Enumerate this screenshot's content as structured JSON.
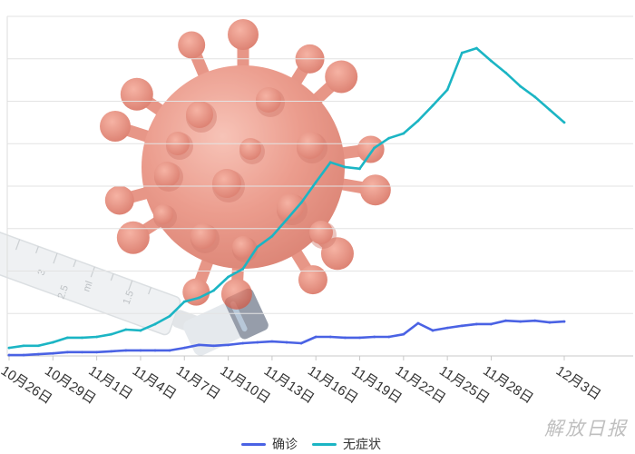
{
  "chart_data": {
    "type": "line",
    "x": [
      "10月26日",
      "10月27日",
      "10月28日",
      "10月29日",
      "10月30日",
      "10月31日",
      "11月1日",
      "11月2日",
      "11月3日",
      "11月4日",
      "11月5日",
      "11月6日",
      "11月7日",
      "11月8日",
      "11月9日",
      "11月10日",
      "11月11日",
      "11月12日",
      "11月13日",
      "11月14日",
      "11月15日",
      "11月16日",
      "11月17日",
      "11月18日",
      "11月19日",
      "11月20日",
      "11月21日",
      "11月22日",
      "11月23日",
      "11月24日",
      "11月25日",
      "11月26日",
      "11月27日",
      "11月28日",
      "11月29日",
      "11月30日",
      "12月1日",
      "12月2日",
      "12月3日"
    ],
    "x_tick_labels": [
      "10月26日",
      "10月29日",
      "11月1日",
      "11月4日",
      "11月7日",
      "11月10日",
      "11月13日",
      "11月16日",
      "11月19日",
      "11月22日",
      "11月25日",
      "11月28日",
      "12月3日"
    ],
    "ylim": [
      0,
      8
    ],
    "grid": true,
    "legend": "bottom",
    "series": [
      {
        "name": "确诊",
        "color": "#4a62e4",
        "values": [
          0.02,
          0.02,
          0.04,
          0.06,
          0.09,
          0.09,
          0.09,
          0.11,
          0.13,
          0.13,
          0.13,
          0.13,
          0.19,
          0.26,
          0.24,
          0.26,
          0.3,
          0.32,
          0.34,
          0.32,
          0.3,
          0.45,
          0.45,
          0.43,
          0.43,
          0.45,
          0.45,
          0.51,
          0.77,
          0.6,
          0.66,
          0.71,
          0.75,
          0.75,
          0.83,
          0.81,
          0.83,
          0.79,
          0.81
        ]
      },
      {
        "name": "无症状",
        "color": "#1bb5c4",
        "values": [
          0.19,
          0.24,
          0.24,
          0.32,
          0.43,
          0.43,
          0.45,
          0.51,
          0.62,
          0.6,
          0.75,
          0.94,
          1.28,
          1.37,
          1.54,
          1.86,
          2.05,
          2.57,
          2.82,
          3.21,
          3.61,
          4.09,
          4.56,
          4.45,
          4.41,
          4.9,
          5.13,
          5.24,
          5.54,
          5.9,
          6.27,
          7.14,
          7.25,
          6.95,
          6.67,
          6.35,
          6.1,
          5.8,
          5.5
        ]
      }
    ]
  },
  "background": {
    "syringe_marks": [
      "3",
      "2.5",
      "ml",
      "1.5"
    ]
  },
  "watermark": {
    "text": "解放日报"
  }
}
